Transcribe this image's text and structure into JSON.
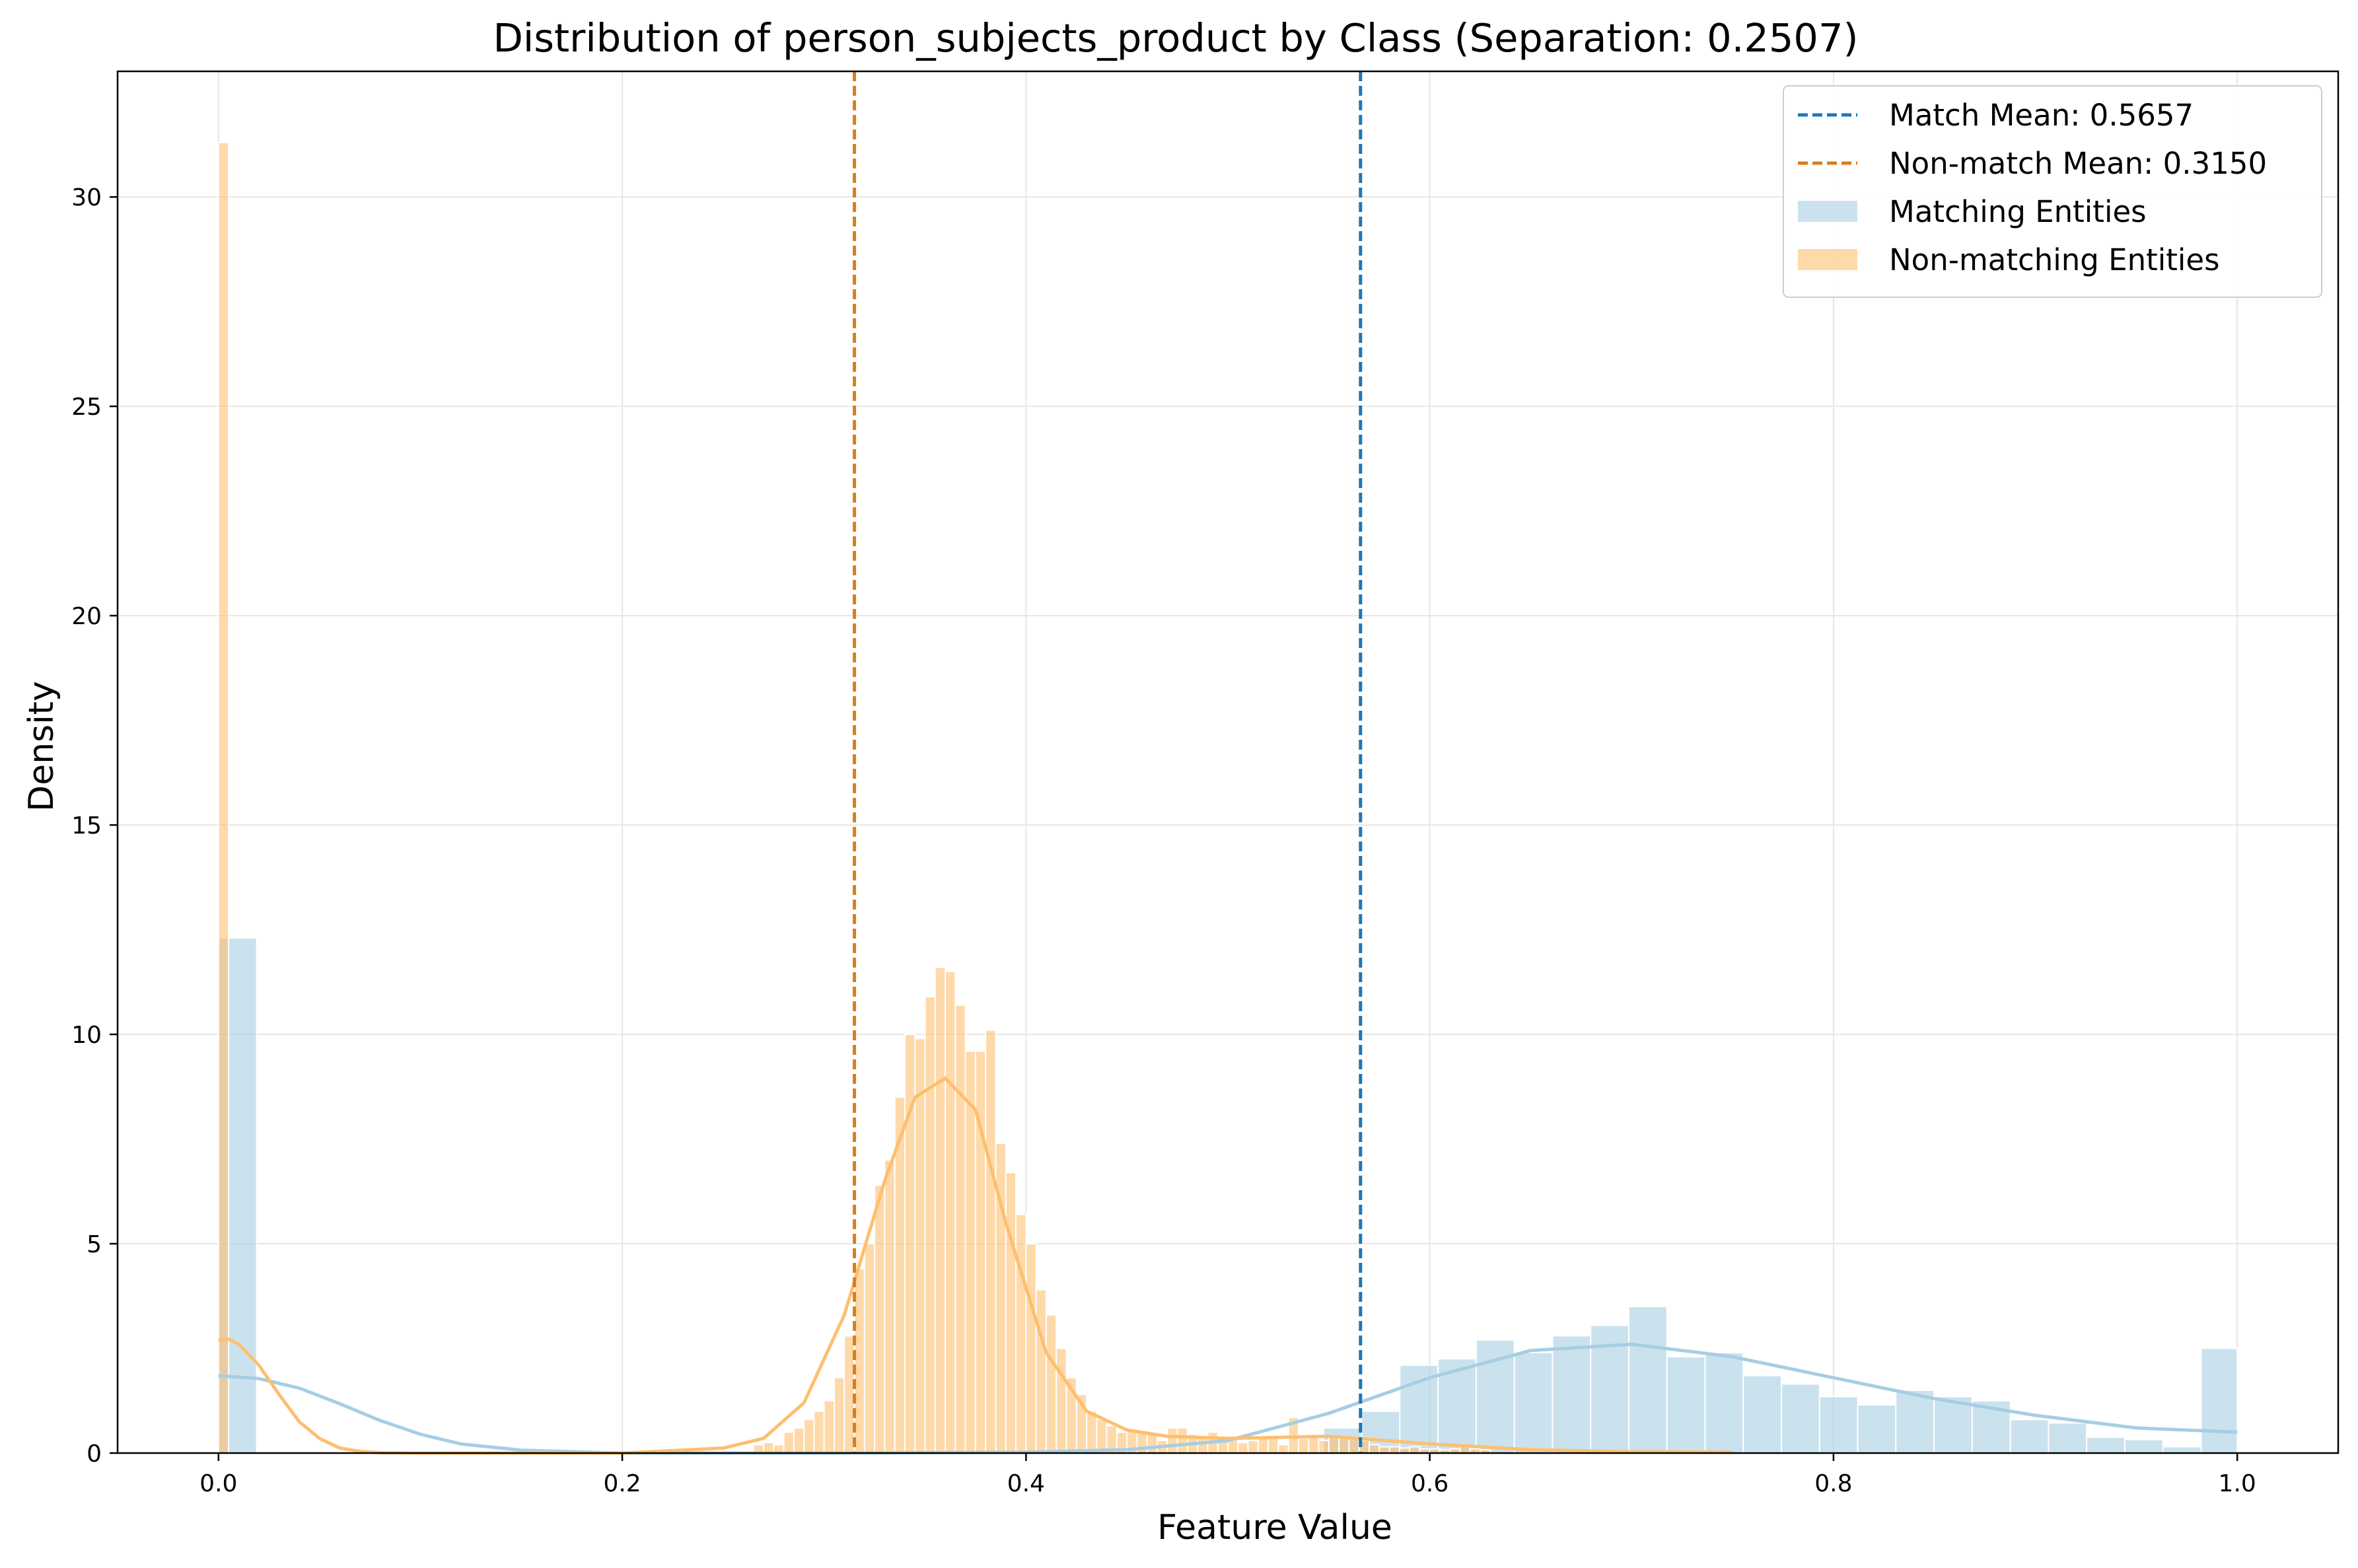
{
  "chart_data": {
    "type": "bar",
    "title": "Distribution of person_subjects_product by Class (Separation: 0.2507)",
    "xlabel": "Feature Value",
    "ylabel": "Density",
    "xlim": [
      -0.05,
      1.05
    ],
    "ylim": [
      0,
      33
    ],
    "xticks": [
      0.0,
      0.2,
      0.4,
      0.6,
      0.8,
      1.0
    ],
    "xtick_labels": [
      "0.0",
      "0.2",
      "0.4",
      "0.6",
      "0.8",
      "1.0"
    ],
    "yticks": [
      0,
      5,
      10,
      15,
      20,
      25,
      30
    ],
    "ytick_labels": [
      "0",
      "5",
      "10",
      "15",
      "20",
      "25",
      "30"
    ],
    "grid": true,
    "legend_position": "top-right",
    "legend": [
      {
        "label": "Match Mean: 0.5657",
        "kind": "dashed-line",
        "color": "#1f77b4"
      },
      {
        "label": "Non-match Mean: 0.3150",
        "kind": "dashed-line",
        "color": "#d97e1a"
      },
      {
        "label": "Matching Entities",
        "kind": "patch",
        "color": "#a6cee3"
      },
      {
        "label": "Non-matching Entities",
        "kind": "patch",
        "color": "#fdbf6f"
      }
    ],
    "mean_lines": [
      {
        "name": "Match Mean",
        "x": 0.5657,
        "color": "#1f77b4"
      },
      {
        "name": "Non-match Mean",
        "x": 0.315,
        "color": "#d97e1a"
      }
    ],
    "series": [
      {
        "name": "Matching Entities",
        "color": "#a6cee3",
        "bin_edges": [
          0.0,
          0.0189,
          0.5474,
          0.5663,
          0.5852,
          0.6041,
          0.623,
          0.6419,
          0.6608,
          0.6797,
          0.6986,
          0.7175,
          0.7364,
          0.7553,
          0.7742,
          0.7931,
          0.812,
          0.8309,
          0.8498,
          0.8687,
          0.8876,
          0.9065,
          0.9254,
          0.9443,
          0.9632,
          0.9821,
          1.0
        ],
        "values": [
          12.3,
          0,
          0.6,
          1.0,
          2.1,
          2.25,
          2.7,
          2.4,
          2.8,
          3.05,
          3.5,
          2.3,
          2.4,
          1.85,
          1.65,
          1.35,
          1.15,
          1.5,
          1.35,
          1.25,
          0.8,
          0.72,
          0.38,
          0.32,
          0.15,
          2.5
        ],
        "kde": {
          "x": [
            0.0,
            0.02,
            0.04,
            0.06,
            0.08,
            0.1,
            0.12,
            0.15,
            0.2,
            0.3,
            0.4,
            0.45,
            0.5,
            0.55,
            0.6,
            0.65,
            0.7,
            0.75,
            0.8,
            0.85,
            0.9,
            0.95,
            1.0
          ],
          "y": [
            1.85,
            1.78,
            1.55,
            1.18,
            0.78,
            0.45,
            0.22,
            0.07,
            0.0,
            0.0,
            0.02,
            0.08,
            0.3,
            0.95,
            1.8,
            2.45,
            2.6,
            2.3,
            1.8,
            1.3,
            0.9,
            0.6,
            0.5
          ]
        }
      },
      {
        "name": "Non-matching Entities",
        "color": "#fdbf6f",
        "bin_edges": [
          0.0,
          0.005,
          0.265,
          0.27,
          0.275,
          0.28,
          0.285,
          0.29,
          0.295,
          0.3,
          0.305,
          0.31,
          0.315,
          0.32,
          0.325,
          0.33,
          0.335,
          0.34,
          0.345,
          0.35,
          0.355,
          0.36,
          0.365,
          0.37,
          0.375,
          0.38,
          0.385,
          0.39,
          0.395,
          0.4,
          0.405,
          0.41,
          0.415,
          0.42,
          0.425,
          0.43,
          0.435,
          0.44,
          0.445,
          0.45,
          0.455,
          0.46,
          0.465,
          0.47,
          0.475,
          0.48,
          0.485,
          0.49,
          0.495,
          0.5,
          0.505,
          0.51,
          0.515,
          0.52,
          0.525,
          0.53,
          0.535,
          0.54,
          0.545,
          0.55,
          0.555,
          0.56,
          0.565,
          0.57,
          0.575,
          0.58,
          0.585,
          0.59,
          0.595,
          0.6,
          0.605,
          0.61,
          0.615,
          0.62,
          0.625,
          0.63
        ],
        "values": [
          31.3,
          0,
          0.2,
          0.25,
          0.2,
          0.5,
          0.6,
          0.8,
          1.0,
          1.25,
          1.8,
          2.8,
          4.4,
          5.0,
          6.4,
          7.0,
          8.5,
          10.0,
          9.9,
          10.9,
          11.6,
          11.5,
          10.7,
          9.6,
          9.6,
          10.1,
          7.4,
          6.7,
          5.7,
          5.0,
          3.9,
          3.3,
          2.5,
          1.8,
          1.4,
          1.0,
          0.8,
          0.65,
          0.5,
          0.55,
          0.5,
          0.45,
          0.3,
          0.6,
          0.6,
          0.45,
          0.4,
          0.5,
          0.4,
          0.35,
          0.25,
          0.3,
          0.4,
          0.35,
          0.2,
          0.85,
          0.35,
          0.4,
          0.3,
          0.4,
          0.35,
          0.35,
          0.3,
          0.2,
          0.15,
          0.15,
          0.12,
          0.15,
          0.1,
          0.1,
          0.08,
          0.1,
          0.15,
          0.1,
          0.08
        ],
        "kde": {
          "x": [
            0.0,
            0.005,
            0.01,
            0.02,
            0.03,
            0.04,
            0.05,
            0.06,
            0.07,
            0.08,
            0.1,
            0.2,
            0.25,
            0.27,
            0.29,
            0.31,
            0.33,
            0.345,
            0.36,
            0.375,
            0.39,
            0.41,
            0.43,
            0.45,
            0.47,
            0.5,
            0.55,
            0.6,
            0.65,
            0.7,
            0.75
          ],
          "y": [
            2.7,
            2.72,
            2.6,
            2.1,
            1.4,
            0.75,
            0.35,
            0.12,
            0.04,
            0.01,
            0.0,
            0.0,
            0.12,
            0.35,
            1.2,
            3.3,
            6.5,
            8.5,
            8.95,
            8.2,
            5.5,
            2.4,
            1.0,
            0.55,
            0.4,
            0.35,
            0.4,
            0.22,
            0.08,
            0.03,
            0.02
          ]
        }
      }
    ]
  }
}
